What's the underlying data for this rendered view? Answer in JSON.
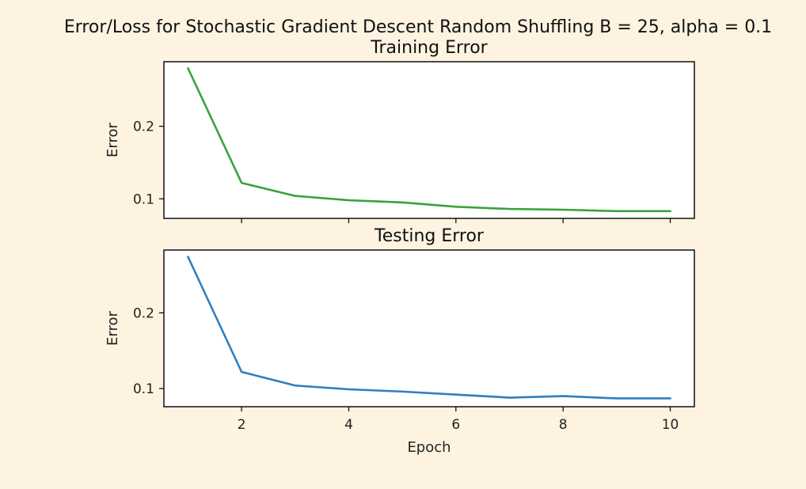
{
  "figure": {
    "suptitle": "Error/Loss for Stochastic Gradient Descent Random Shuffling B = 25, alpha = 0.1",
    "background_color": "#fdf3e0"
  },
  "chart_data": [
    {
      "type": "line",
      "title": "Training Error",
      "xlabel": "",
      "ylabel": "Error",
      "color": "#3aa23a",
      "x": [
        1,
        2,
        3,
        4,
        5,
        6,
        7,
        8,
        9,
        10
      ],
      "y": [
        0.28,
        0.122,
        0.104,
        0.098,
        0.095,
        0.089,
        0.086,
        0.085,
        0.083,
        0.083
      ],
      "xlim": [
        0.55,
        10.45
      ],
      "ylim": [
        0.073,
        0.289
      ],
      "xticks": [
        2,
        4,
        6,
        8,
        10
      ],
      "xtick_labels": [],
      "yticks": [
        0.1,
        0.2
      ],
      "ytick_labels": [
        "0.1",
        "0.2"
      ],
      "grid": false,
      "legend": false
    },
    {
      "type": "line",
      "title": "Testing Error",
      "xlabel": "Epoch",
      "ylabel": "Error",
      "color": "#2f7fc0",
      "x": [
        1,
        2,
        3,
        4,
        5,
        6,
        7,
        8,
        9,
        10
      ],
      "y": [
        0.274,
        0.122,
        0.104,
        0.099,
        0.096,
        0.092,
        0.088,
        0.09,
        0.087,
        0.087
      ],
      "xlim": [
        0.55,
        10.45
      ],
      "ylim": [
        0.076,
        0.283
      ],
      "xticks": [
        2,
        4,
        6,
        8,
        10
      ],
      "xtick_labels": [
        "2",
        "4",
        "6",
        "8",
        "10"
      ],
      "yticks": [
        0.1,
        0.2
      ],
      "ytick_labels": [
        "0.1",
        "0.2"
      ],
      "grid": false,
      "legend": false
    }
  ]
}
